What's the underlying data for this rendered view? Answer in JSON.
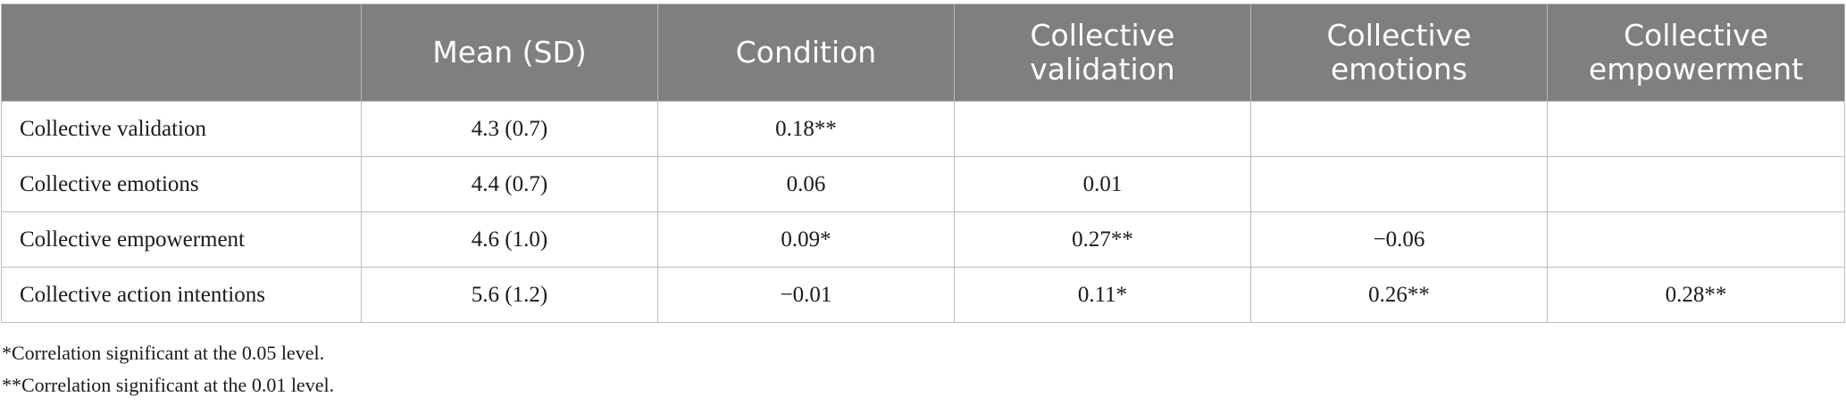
{
  "table": {
    "header": [
      "",
      "Mean (SD)",
      "Condition",
      "Collective validation",
      "Collective emotions",
      "Collective empowerment"
    ],
    "rows": [
      [
        "Collective validation",
        "4.3 (0.7)",
        "0.18**",
        "",
        "",
        ""
      ],
      [
        "Collective emotions",
        "4.4 (0.7)",
        "0.06",
        "0.01",
        "",
        ""
      ],
      [
        "Collective empowerment",
        "4.6 (1.0)",
        "0.09*",
        "0.27**",
        "−0.06",
        ""
      ],
      [
        "Collective action intentions",
        "5.6 (1.2)",
        "−0.01",
        "0.11*",
        "0.26**",
        "0.28**"
      ]
    ]
  },
  "notes": [
    "*Correlation significant at the 0.05 level.",
    "**Correlation significant at the 0.01 level."
  ],
  "colors": {
    "header_bg": "#807f7e",
    "header_text": "#ffffff",
    "grid": "#bdbdbd"
  }
}
